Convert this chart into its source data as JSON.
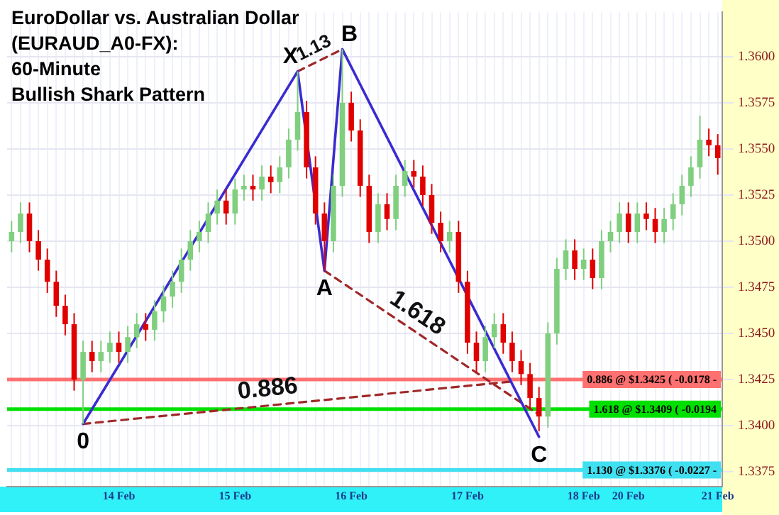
{
  "chart_data": {
    "type": "candlestick",
    "title": "EuroDollar vs. Australian Dollar\n(EURAUD_A0-FX):",
    "subtitle": "60-Minute\nBullish Shark Pattern",
    "categories": [
      null,
      null,
      null,
      null,
      null,
      null,
      null,
      null,
      null,
      null,
      null,
      null,
      "14 Feb",
      null,
      null,
      null,
      null,
      null,
      null,
      null,
      null,
      null,
      null,
      null,
      null,
      "15 Feb",
      null,
      null,
      null,
      null,
      null,
      null,
      null,
      null,
      null,
      null,
      null,
      null,
      "16 Feb",
      null,
      null,
      null,
      null,
      null,
      null,
      null,
      null,
      null,
      null,
      null,
      null,
      "17 Feb",
      null,
      null,
      null,
      null,
      null,
      null,
      null,
      null,
      null,
      null,
      null,
      null,
      "18 Feb",
      null,
      null,
      null,
      null,
      "20 Feb",
      null,
      null,
      null,
      null,
      null,
      null,
      null,
      null,
      null,
      "21 Feb"
    ],
    "ohlc": [
      [
        1.35,
        1.3511,
        1.3494,
        1.3505
      ],
      [
        1.3505,
        1.3521,
        1.3499,
        1.3515
      ],
      [
        1.3515,
        1.3521,
        1.3494,
        1.35
      ],
      [
        1.35,
        1.3506,
        1.3484,
        1.349
      ],
      [
        1.349,
        1.3496,
        1.3472,
        1.3478
      ],
      [
        1.3478,
        1.3484,
        1.3459,
        1.3465
      ],
      [
        1.3465,
        1.3471,
        1.3449,
        1.3455
      ],
      [
        1.3455,
        1.3461,
        1.3419,
        1.3425
      ],
      [
        1.3425,
        1.3446,
        1.3401,
        1.344
      ],
      [
        1.344,
        1.3446,
        1.3429,
        1.3435
      ],
      [
        1.3435,
        1.3446,
        1.3429,
        1.344
      ],
      [
        1.344,
        1.3451,
        1.3434,
        1.3445
      ],
      [
        1.3445,
        1.3451,
        1.3434,
        1.344
      ],
      [
        1.344,
        1.3454,
        1.3434,
        1.3448
      ],
      [
        1.3448,
        1.3461,
        1.3442,
        1.3455
      ],
      [
        1.3455,
        1.3461,
        1.3446,
        1.3452
      ],
      [
        1.3452,
        1.3468,
        1.3446,
        1.3462
      ],
      [
        1.3462,
        1.3476,
        1.3456,
        1.347
      ],
      [
        1.347,
        1.3484,
        1.3464,
        1.3478
      ],
      [
        1.3478,
        1.3496,
        1.3472,
        1.349
      ],
      [
        1.349,
        1.3506,
        1.3484,
        1.35
      ],
      [
        1.35,
        1.3511,
        1.3494,
        1.3505
      ],
      [
        1.3505,
        1.3521,
        1.3499,
        1.3515
      ],
      [
        1.3515,
        1.3528,
        1.3509,
        1.3522
      ],
      [
        1.3522,
        1.3528,
        1.3509,
        1.3515
      ],
      [
        1.3515,
        1.3534,
        1.3509,
        1.3528
      ],
      [
        1.3528,
        1.3536,
        1.3522,
        1.353
      ],
      [
        1.353,
        1.3536,
        1.3522,
        1.3528
      ],
      [
        1.3528,
        1.3541,
        1.3522,
        1.3535
      ],
      [
        1.3535,
        1.3541,
        1.3526,
        1.3532
      ],
      [
        1.3532,
        1.3546,
        1.3526,
        1.354
      ],
      [
        1.354,
        1.3561,
        1.3534,
        1.3555
      ],
      [
        1.3555,
        1.3592,
        1.3549,
        1.357
      ],
      [
        1.357,
        1.3576,
        1.3534,
        1.354
      ],
      [
        1.354,
        1.3546,
        1.3509,
        1.3515
      ],
      [
        1.3515,
        1.3521,
        1.3484,
        1.35
      ],
      [
        1.35,
        1.3536,
        1.3494,
        1.353
      ],
      [
        1.353,
        1.3604,
        1.3524,
        1.3575
      ],
      [
        1.3575,
        1.3581,
        1.3554,
        1.356
      ],
      [
        1.356,
        1.3566,
        1.3524,
        1.353
      ],
      [
        1.353,
        1.3536,
        1.3499,
        1.3505
      ],
      [
        1.3505,
        1.3526,
        1.3499,
        1.352
      ],
      [
        1.352,
        1.3526,
        1.3506,
        1.3512
      ],
      [
        1.3512,
        1.3536,
        1.3506,
        1.353
      ],
      [
        1.353,
        1.3544,
        1.3524,
        1.3538
      ],
      [
        1.3538,
        1.3544,
        1.3529,
        1.3535
      ],
      [
        1.3535,
        1.3541,
        1.3519,
        1.3525
      ],
      [
        1.3525,
        1.3531,
        1.3504,
        1.351
      ],
      [
        1.351,
        1.3516,
        1.3494,
        1.35
      ],
      [
        1.35,
        1.3511,
        1.3494,
        1.3505
      ],
      [
        1.3505,
        1.3511,
        1.3472,
        1.3478
      ],
      [
        1.3478,
        1.3484,
        1.3439,
        1.3445
      ],
      [
        1.3445,
        1.3451,
        1.3429,
        1.3435
      ],
      [
        1.3435,
        1.3454,
        1.3429,
        1.3448
      ],
      [
        1.3448,
        1.3461,
        1.3442,
        1.3455
      ],
      [
        1.3455,
        1.3461,
        1.3439,
        1.3445
      ],
      [
        1.3445,
        1.3451,
        1.3429,
        1.3435
      ],
      [
        1.3435,
        1.3441,
        1.3422,
        1.3428
      ],
      [
        1.3428,
        1.3434,
        1.3409,
        1.3415
      ],
      [
        1.3415,
        1.3421,
        1.3397,
        1.3405
      ],
      [
        1.3405,
        1.3456,
        1.3399,
        1.345
      ],
      [
        1.345,
        1.3491,
        1.3444,
        1.3485
      ],
      [
        1.3485,
        1.3501,
        1.3479,
        1.3495
      ],
      [
        1.3495,
        1.3501,
        1.3479,
        1.3485
      ],
      [
        1.3485,
        1.3496,
        1.3479,
        1.349
      ],
      [
        1.349,
        1.3496,
        1.3474,
        1.348
      ],
      [
        1.348,
        1.3506,
        1.3474,
        1.35
      ],
      [
        1.35,
        1.3511,
        1.3494,
        1.3505
      ],
      [
        1.3505,
        1.3521,
        1.3499,
        1.3515
      ],
      [
        1.3515,
        1.3521,
        1.3499,
        1.3505
      ],
      [
        1.3505,
        1.3521,
        1.3499,
        1.3515
      ],
      [
        1.3515,
        1.3521,
        1.3506,
        1.3512
      ],
      [
        1.3512,
        1.3518,
        1.3499,
        1.3505
      ],
      [
        1.3505,
        1.3518,
        1.3499,
        1.3512
      ],
      [
        1.3512,
        1.3526,
        1.3506,
        1.352
      ],
      [
        1.352,
        1.3536,
        1.3514,
        1.353
      ],
      [
        1.353,
        1.3546,
        1.3524,
        1.354
      ],
      [
        1.354,
        1.3568,
        1.3534,
        1.3555
      ],
      [
        1.3555,
        1.3561,
        1.3546,
        1.3552
      ],
      [
        1.3552,
        1.3558,
        1.3536,
        1.3545
      ]
    ],
    "colors": [
      "#7fcf7f",
      "#7fcf7f",
      "#e00000",
      "#e00000",
      "#e00000",
      "#e00000",
      "#e00000",
      "#e00000",
      "#7fcf7f",
      "#e00000",
      "#7fcf7f",
      "#7fcf7f",
      "#e00000",
      "#7fcf7f",
      "#7fcf7f",
      "#e00000",
      "#7fcf7f",
      "#7fcf7f",
      "#7fcf7f",
      "#7fcf7f",
      "#7fcf7f",
      "#7fcf7f",
      "#7fcf7f",
      "#7fcf7f",
      "#e00000",
      "#7fcf7f",
      "#7fcf7f",
      "#e00000",
      "#7fcf7f",
      "#e00000",
      "#7fcf7f",
      "#7fcf7f",
      "#7fcf7f",
      "#e00000",
      "#e00000",
      "#e00000",
      "#7fcf7f",
      "#7fcf7f",
      "#e00000",
      "#e00000",
      "#e00000",
      "#7fcf7f",
      "#e00000",
      "#7fcf7f",
      "#7fcf7f",
      "#e00000",
      "#e00000",
      "#e00000",
      "#e00000",
      "#7fcf7f",
      "#e00000",
      "#e00000",
      "#e00000",
      "#7fcf7f",
      "#7fcf7f",
      "#e00000",
      "#e00000",
      "#e00000",
      "#e00000",
      "#e00000",
      "#7fcf7f",
      "#7fcf7f",
      "#7fcf7f",
      "#e00000",
      "#7fcf7f",
      "#e00000",
      "#7fcf7f",
      "#7fcf7f",
      "#7fcf7f",
      "#e00000",
      "#7fcf7f",
      "#e00000",
      "#e00000",
      "#7fcf7f",
      "#7fcf7f",
      "#7fcf7f",
      "#7fcf7f",
      "#7fcf7f",
      "#e00000",
      "#e00000"
    ],
    "series": [
      {
        "type": "line",
        "color": "#3a2bd0",
        "line_style": "solid",
        "values": [
          null,
          null,
          null,
          null,
          null,
          null,
          null,
          null,
          1.3401,
          null,
          null,
          null,
          null,
          null,
          null,
          null,
          null,
          null,
          null,
          null,
          null,
          null,
          null,
          null,
          null,
          null,
          null,
          null,
          null,
          null,
          null,
          null,
          1.3592,
          null,
          null,
          1.3484,
          null,
          1.3604,
          null,
          null,
          null,
          null,
          null,
          null,
          null,
          null,
          null,
          null,
          null,
          null,
          null,
          null,
          null,
          null,
          null,
          null,
          null,
          null,
          null,
          1.3394,
          null,
          null,
          null,
          null,
          null,
          null,
          null,
          null,
          null,
          null,
          null,
          null,
          null,
          null,
          null,
          null,
          null,
          null,
          null,
          null
        ]
      },
      {
        "type": "line",
        "name": "1.13",
        "color": "#a02828",
        "line_style": "dashed",
        "values": [
          null,
          null,
          null,
          null,
          null,
          null,
          null,
          null,
          null,
          null,
          null,
          null,
          null,
          null,
          null,
          null,
          null,
          null,
          null,
          null,
          null,
          null,
          null,
          null,
          null,
          null,
          null,
          null,
          null,
          null,
          null,
          null,
          1.3592,
          null,
          null,
          null,
          null,
          1.3604,
          null,
          null,
          null,
          null,
          null,
          null,
          null,
          null,
          null,
          null,
          null,
          null,
          null,
          null,
          null,
          null,
          null,
          null,
          null,
          null,
          null,
          null,
          null,
          null,
          null,
          null,
          null,
          null,
          null,
          null,
          null,
          null,
          null,
          null,
          null,
          null,
          null,
          null,
          null,
          null,
          null,
          null
        ]
      },
      {
        "type": "line",
        "name": "0.886",
        "color": "#a02828",
        "line_style": "dashed",
        "values": [
          null,
          null,
          null,
          null,
          null,
          null,
          null,
          null,
          1.3401,
          null,
          null,
          null,
          null,
          null,
          null,
          null,
          null,
          null,
          null,
          null,
          null,
          null,
          null,
          null,
          null,
          null,
          null,
          null,
          null,
          null,
          null,
          null,
          null,
          null,
          null,
          null,
          null,
          null,
          null,
          null,
          null,
          null,
          null,
          null,
          null,
          null,
          null,
          null,
          null,
          null,
          null,
          null,
          null,
          null,
          null,
          null,
          1.3424,
          null,
          null,
          null,
          null,
          null,
          null,
          null,
          null,
          null,
          null,
          null,
          null,
          null,
          null,
          null,
          null,
          null,
          null,
          null,
          null,
          null,
          null,
          null
        ]
      },
      {
        "type": "line",
        "name": "1.618",
        "color": "#a02828",
        "line_style": "dashed",
        "values": [
          null,
          null,
          null,
          null,
          null,
          null,
          null,
          null,
          null,
          null,
          null,
          null,
          null,
          null,
          null,
          null,
          null,
          null,
          null,
          null,
          null,
          null,
          null,
          null,
          null,
          null,
          null,
          null,
          null,
          null,
          null,
          null,
          null,
          null,
          null,
          1.3484,
          null,
          null,
          null,
          null,
          null,
          null,
          null,
          null,
          null,
          null,
          null,
          null,
          null,
          null,
          null,
          null,
          null,
          null,
          null,
          null,
          null,
          null,
          null,
          1.3406,
          null,
          null,
          null,
          null,
          null,
          null,
          null,
          null,
          null,
          null,
          null,
          null,
          null,
          null,
          null,
          null,
          null,
          null,
          null,
          null
        ]
      }
    ],
    "ref_lines": [
      {
        "axis": "y",
        "value": 1.3425,
        "label": "0.886 @ $1.3425 ( -0.0178 -",
        "color": "#ff7070"
      },
      {
        "axis": "y",
        "value": 1.3409,
        "label": "1.618 @ $1.3409 ( -0.0194",
        "color": "#00e000"
      },
      {
        "axis": "y",
        "value": 1.3376,
        "label": "1.130 @ $1.3376 ( -0.0227 -",
        "color": "#40e0f0"
      }
    ],
    "ylim": [
      1.3367,
      1.3624
    ],
    "yticks": [
      {
        "value": 1.3375,
        "label": "1.3375"
      },
      {
        "value": 1.34,
        "label": "1.3400"
      },
      {
        "value": 1.3425,
        "label": "1.3425"
      },
      {
        "value": 1.345,
        "label": "1.3450"
      },
      {
        "value": 1.3475,
        "label": "1.3475"
      },
      {
        "value": 1.35,
        "label": "1.3500"
      },
      {
        "value": 1.3525,
        "label": "1.3525"
      },
      {
        "value": 1.355,
        "label": "1.3550"
      },
      {
        "value": 1.3575,
        "label": "1.3575"
      },
      {
        "value": 1.36,
        "label": "1.3600"
      }
    ],
    "annotations": [
      {
        "text": "0",
        "y": 1.3401
      },
      {
        "text": "X",
        "y": 1.3592
      },
      {
        "text": "A",
        "y": 1.3484
      },
      {
        "text": "B",
        "y": 1.3604
      },
      {
        "text": "C",
        "y": 1.3394
      }
    ],
    "grid": true
  }
}
